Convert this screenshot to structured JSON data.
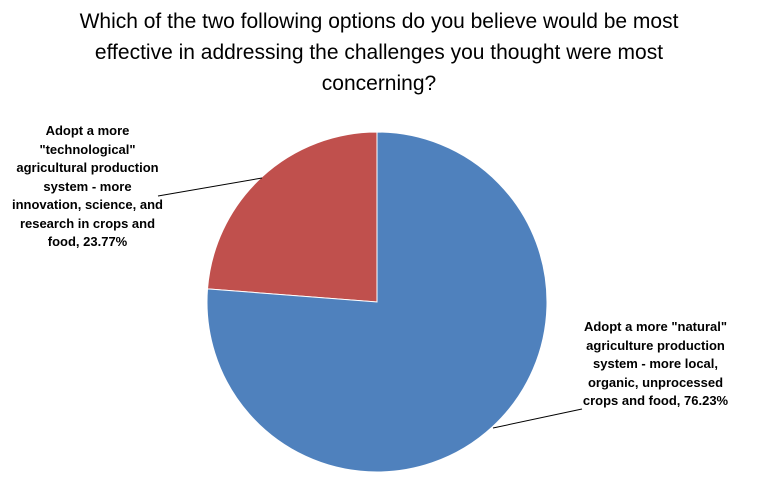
{
  "chart_data": {
    "type": "pie",
    "title": "Which of the two following options do you believe would be most effective in addressing the challenges you thought were most concerning?",
    "categories": [
      "Adopt a more \"natural\" agriculture production system - more local, organic, unprocessed crops and food,",
      "Adopt a more \"technological\" agricultural production system - more innovation, science, and research in crops and food,"
    ],
    "values": [
      76.23,
      23.77
    ],
    "value_labels": [
      "76.23%",
      "23.77%"
    ],
    "colors": [
      "#4f81bd",
      "#c0504d"
    ]
  }
}
